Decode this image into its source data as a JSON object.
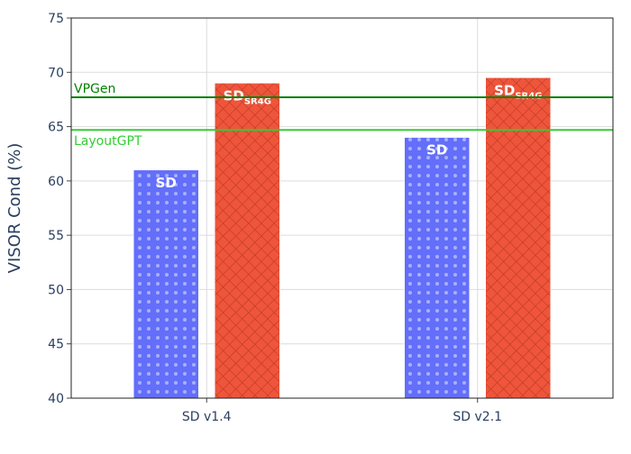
{
  "chart_data": {
    "type": "bar",
    "categories": [
      "SD v1.4",
      "SD v2.1"
    ],
    "series": [
      {
        "name": "SD",
        "label_main": "SD",
        "label_sub": "",
        "color": "#636efa",
        "pattern": "dots",
        "values": [
          61.0,
          64.0
        ]
      },
      {
        "name": "SD_SR4G",
        "label_main": "SD",
        "label_sub": "SR4G",
        "color": "#ef553b",
        "pattern": "crosshatch",
        "values": [
          69.0,
          69.5
        ]
      }
    ],
    "reference_lines": [
      {
        "name": "VPGen",
        "value": 67.7,
        "color": "#008000"
      },
      {
        "name": "LayoutGPT",
        "value": 64.7,
        "color": "#32cd32"
      }
    ],
    "ylabel": "VISOR Cond (%)",
    "xlabel": "",
    "ylim": [
      40,
      75
    ],
    "yticks": [
      40,
      45,
      50,
      55,
      60,
      65,
      70,
      75
    ],
    "grid": true
  }
}
